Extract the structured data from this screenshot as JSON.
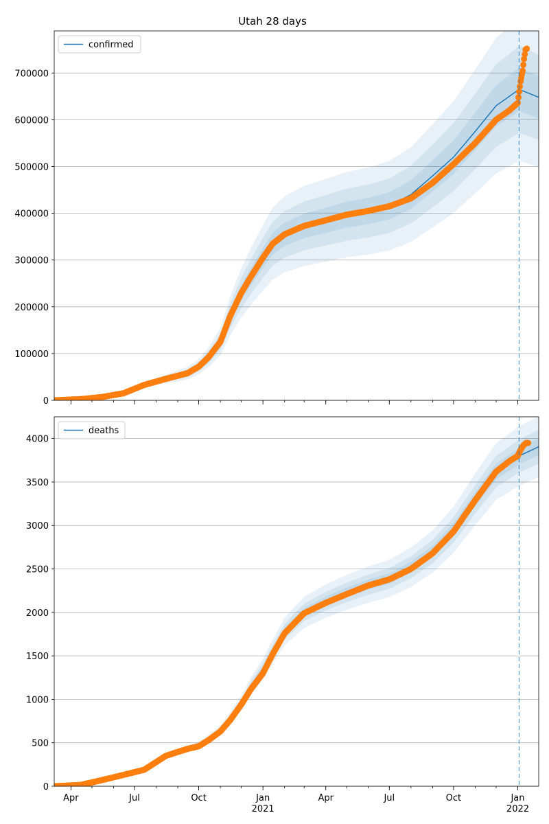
{
  "title": "Utah 28 days",
  "colors": {
    "model_line": "#1f77b4",
    "band": "#1f77b4",
    "observed": "#ff7f0e",
    "grid": "#b0b0b0",
    "forecast_line": "#1f77b4"
  },
  "x_axis": {
    "range": [
      "2020-03-08",
      "2022-01-31"
    ],
    "major_ticks": [
      {
        "date": "2020-04-01",
        "label": "Apr",
        "sub": ""
      },
      {
        "date": "2020-07-01",
        "label": "Jul",
        "sub": ""
      },
      {
        "date": "2020-10-01",
        "label": "Oct",
        "sub": ""
      },
      {
        "date": "2021-01-01",
        "label": "Jan",
        "sub": "2021"
      },
      {
        "date": "2021-04-01",
        "label": "Apr",
        "sub": ""
      },
      {
        "date": "2021-07-01",
        "label": "Jul",
        "sub": ""
      },
      {
        "date": "2021-10-01",
        "label": "Oct",
        "sub": ""
      },
      {
        "date": "2022-01-01",
        "label": "Jan",
        "sub": "2022"
      }
    ],
    "forecast_start": "2022-01-03"
  },
  "chart_data": [
    {
      "type": "line",
      "name": "confirmed",
      "legend": "confirmed",
      "legend_position": "top-left",
      "grid": "horizontal",
      "ylim": [
        0,
        790000
      ],
      "yticks": [
        0,
        100000,
        200000,
        300000,
        400000,
        500000,
        600000,
        700000
      ],
      "ytick_labels": [
        "0",
        "100000",
        "200000",
        "300000",
        "400000",
        "500000",
        "600000",
        "700000"
      ],
      "model": [
        {
          "x": "2020-03-08",
          "y": 0
        },
        {
          "x": "2020-04-15",
          "y": 3000
        },
        {
          "x": "2020-05-15",
          "y": 8000
        },
        {
          "x": "2020-06-15",
          "y": 16000
        },
        {
          "x": "2020-07-15",
          "y": 33000
        },
        {
          "x": "2020-08-15",
          "y": 46000
        },
        {
          "x": "2020-09-15",
          "y": 58000
        },
        {
          "x": "2020-10-01",
          "y": 72000
        },
        {
          "x": "2020-10-15",
          "y": 92000
        },
        {
          "x": "2020-11-01",
          "y": 125000
        },
        {
          "x": "2020-11-15",
          "y": 180000
        },
        {
          "x": "2020-12-01",
          "y": 230000
        },
        {
          "x": "2020-12-15",
          "y": 265000
        },
        {
          "x": "2021-01-01",
          "y": 305000
        },
        {
          "x": "2021-01-15",
          "y": 335000
        },
        {
          "x": "2021-02-01",
          "y": 355000
        },
        {
          "x": "2021-03-01",
          "y": 373000
        },
        {
          "x": "2021-04-01",
          "y": 385000
        },
        {
          "x": "2021-05-01",
          "y": 397000
        },
        {
          "x": "2021-06-01",
          "y": 405000
        },
        {
          "x": "2021-07-01",
          "y": 416000
        },
        {
          "x": "2021-08-01",
          "y": 440000
        },
        {
          "x": "2021-09-01",
          "y": 480000
        },
        {
          "x": "2021-10-01",
          "y": 520000
        },
        {
          "x": "2021-11-01",
          "y": 575000
        },
        {
          "x": "2021-12-01",
          "y": 630000
        },
        {
          "x": "2022-01-03",
          "y": 665000
        },
        {
          "x": "2022-01-31",
          "y": 648000
        }
      ],
      "band_widths": [
        0.07,
        0.14,
        0.23
      ],
      "observed": [
        {
          "x": "2020-03-08",
          "y": 0
        },
        {
          "x": "2020-04-15",
          "y": 2500
        },
        {
          "x": "2020-05-15",
          "y": 7000
        },
        {
          "x": "2020-06-15",
          "y": 15000
        },
        {
          "x": "2020-07-15",
          "y": 33000
        },
        {
          "x": "2020-08-15",
          "y": 46000
        },
        {
          "x": "2020-09-15",
          "y": 58000
        },
        {
          "x": "2020-10-01",
          "y": 72000
        },
        {
          "x": "2020-10-15",
          "y": 92000
        },
        {
          "x": "2020-11-01",
          "y": 125000
        },
        {
          "x": "2020-11-15",
          "y": 180000
        },
        {
          "x": "2020-12-01",
          "y": 230000
        },
        {
          "x": "2020-12-15",
          "y": 265000
        },
        {
          "x": "2021-01-01",
          "y": 305000
        },
        {
          "x": "2021-01-15",
          "y": 335000
        },
        {
          "x": "2021-02-01",
          "y": 355000
        },
        {
          "x": "2021-03-01",
          "y": 373000
        },
        {
          "x": "2021-04-01",
          "y": 385000
        },
        {
          "x": "2021-05-01",
          "y": 397000
        },
        {
          "x": "2021-06-01",
          "y": 405000
        },
        {
          "x": "2021-07-01",
          "y": 415000
        },
        {
          "x": "2021-08-01",
          "y": 432000
        },
        {
          "x": "2021-09-01",
          "y": 465000
        },
        {
          "x": "2021-10-01",
          "y": 505000
        },
        {
          "x": "2021-11-01",
          "y": 550000
        },
        {
          "x": "2021-12-01",
          "y": 600000
        },
        {
          "x": "2021-12-20",
          "y": 620000
        },
        {
          "x": "2022-01-01",
          "y": 636000
        },
        {
          "x": "2022-01-03",
          "y": 660000
        },
        {
          "x": "2022-01-05",
          "y": 682000
        },
        {
          "x": "2022-01-08",
          "y": 705000
        },
        {
          "x": "2022-01-10",
          "y": 730000
        },
        {
          "x": "2022-01-12",
          "y": 750000
        },
        {
          "x": "2022-01-14",
          "y": 752000
        }
      ]
    },
    {
      "type": "line",
      "name": "deaths",
      "legend": "deaths",
      "legend_position": "top-left",
      "grid": "horizontal",
      "ylim": [
        0,
        4250
      ],
      "yticks": [
        0,
        500,
        1000,
        1500,
        2000,
        2500,
        3000,
        3500,
        4000
      ],
      "ytick_labels": [
        "0",
        "500",
        "1000",
        "1500",
        "2000",
        "2500",
        "3000",
        "3500",
        "4000"
      ],
      "model": [
        {
          "x": "2020-03-08",
          "y": 0
        },
        {
          "x": "2020-04-15",
          "y": 15
        },
        {
          "x": "2020-05-15",
          "y": 70
        },
        {
          "x": "2020-06-15",
          "y": 130
        },
        {
          "x": "2020-07-15",
          "y": 210
        },
        {
          "x": "2020-08-15",
          "y": 360
        },
        {
          "x": "2020-09-15",
          "y": 430
        },
        {
          "x": "2020-10-01",
          "y": 470
        },
        {
          "x": "2020-10-15",
          "y": 540
        },
        {
          "x": "2020-11-01",
          "y": 640
        },
        {
          "x": "2020-11-15",
          "y": 780
        },
        {
          "x": "2020-12-01",
          "y": 960
        },
        {
          "x": "2020-12-15",
          "y": 1150
        },
        {
          "x": "2021-01-01",
          "y": 1350
        },
        {
          "x": "2021-01-15",
          "y": 1550
        },
        {
          "x": "2021-02-01",
          "y": 1780
        },
        {
          "x": "2021-03-01",
          "y": 2000
        },
        {
          "x": "2021-04-01",
          "y": 2130
        },
        {
          "x": "2021-05-01",
          "y": 2230
        },
        {
          "x": "2021-06-01",
          "y": 2320
        },
        {
          "x": "2021-07-01",
          "y": 2390
        },
        {
          "x": "2021-08-01",
          "y": 2520
        },
        {
          "x": "2021-09-01",
          "y": 2700
        },
        {
          "x": "2021-10-01",
          "y": 2950
        },
        {
          "x": "2021-11-01",
          "y": 3300
        },
        {
          "x": "2021-12-01",
          "y": 3620
        },
        {
          "x": "2022-01-03",
          "y": 3800
        },
        {
          "x": "2022-01-31",
          "y": 3905
        }
      ],
      "band_widths": [
        0.025,
        0.05,
        0.09
      ],
      "observed": [
        {
          "x": "2020-03-08",
          "y": 0
        },
        {
          "x": "2020-04-15",
          "y": 15
        },
        {
          "x": "2020-05-15",
          "y": 70
        },
        {
          "x": "2020-06-15",
          "y": 130
        },
        {
          "x": "2020-07-15",
          "y": 190
        },
        {
          "x": "2020-08-15",
          "y": 350
        },
        {
          "x": "2020-09-15",
          "y": 430
        },
        {
          "x": "2020-10-01",
          "y": 460
        },
        {
          "x": "2020-10-15",
          "y": 530
        },
        {
          "x": "2020-11-01",
          "y": 630
        },
        {
          "x": "2020-11-15",
          "y": 760
        },
        {
          "x": "2020-12-01",
          "y": 940
        },
        {
          "x": "2020-12-15",
          "y": 1120
        },
        {
          "x": "2021-01-01",
          "y": 1300
        },
        {
          "x": "2021-01-15",
          "y": 1520
        },
        {
          "x": "2021-02-01",
          "y": 1760
        },
        {
          "x": "2021-03-01",
          "y": 1990
        },
        {
          "x": "2021-04-01",
          "y": 2110
        },
        {
          "x": "2021-05-01",
          "y": 2210
        },
        {
          "x": "2021-06-01",
          "y": 2310
        },
        {
          "x": "2021-07-01",
          "y": 2380
        },
        {
          "x": "2021-08-01",
          "y": 2500
        },
        {
          "x": "2021-09-01",
          "y": 2680
        },
        {
          "x": "2021-10-01",
          "y": 2930
        },
        {
          "x": "2021-11-01",
          "y": 3290
        },
        {
          "x": "2021-12-01",
          "y": 3620
        },
        {
          "x": "2021-12-20",
          "y": 3740
        },
        {
          "x": "2022-01-01",
          "y": 3800
        },
        {
          "x": "2022-01-05",
          "y": 3870
        },
        {
          "x": "2022-01-09",
          "y": 3920
        },
        {
          "x": "2022-01-13",
          "y": 3950
        },
        {
          "x": "2022-01-16",
          "y": 3950
        }
      ]
    }
  ]
}
